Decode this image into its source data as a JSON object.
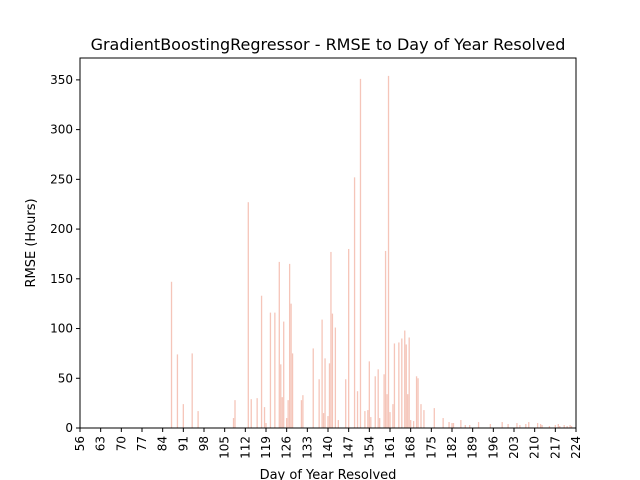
{
  "chart_data": {
    "type": "bar",
    "title": "GradientBoostingRegressor - RMSE to Day of Year Resolved",
    "xlabel": "Day of Year Resolved",
    "ylabel": "RMSE (Hours)",
    "xlim": [
      56,
      224
    ],
    "ylim": [
      0,
      372
    ],
    "x_ticks": [
      56,
      63,
      70,
      77,
      84,
      91,
      98,
      105,
      112,
      119,
      126,
      133,
      140,
      147,
      154,
      161,
      168,
      175,
      182,
      189,
      196,
      203,
      210,
      217,
      224
    ],
    "y_ticks": [
      0,
      50,
      100,
      150,
      200,
      250,
      300,
      350
    ],
    "bar_color": "#f2b6a8",
    "x": [
      87.0,
      89.0,
      91.0,
      94.0,
      96.0,
      108.0,
      108.5,
      113.0,
      114.0,
      116.0,
      117.5,
      118.5,
      119.0,
      120.5,
      122.0,
      123.5,
      124.0,
      124.5,
      125.0,
      126.0,
      126.5,
      127.0,
      127.5,
      128.0,
      131.0,
      131.5,
      135.0,
      137.0,
      138.0,
      138.5,
      139.0,
      140.0,
      140.5,
      141.0,
      141.5,
      142.5,
      143.5,
      146.0,
      147.0,
      149.0,
      150.0,
      151.0,
      152.5,
      153.5,
      154.0,
      154.5,
      156.0,
      157.0,
      157.5,
      159.0,
      159.5,
      160.0,
      160.5,
      161.0,
      162.0,
      162.5,
      164.0,
      165.0,
      166.0,
      166.5,
      167.0,
      167.5,
      168.0,
      169.0,
      170.0,
      170.5,
      171.5,
      172.5,
      176.0,
      179.0,
      181.0,
      182.0,
      182.5,
      185.0,
      186.5,
      188.0,
      191.0,
      195.0,
      199.0,
      201.0,
      204.0,
      205.0,
      207.0,
      208.0,
      211.0,
      212.0,
      212.5,
      215.0,
      217.0,
      218.0,
      218.5,
      220.0,
      221.0,
      222.0,
      222.5
    ],
    "values": [
      147,
      74,
      24,
      75,
      17,
      10,
      28,
      227,
      29,
      30,
      133,
      21,
      5,
      116,
      116,
      167,
      64,
      31,
      107,
      10,
      28,
      165,
      125,
      75,
      28,
      33,
      80,
      49,
      109,
      15,
      70,
      12,
      65,
      177,
      115,
      101,
      8,
      49,
      180,
      252,
      37,
      351,
      17,
      18,
      67,
      11,
      52,
      59,
      10,
      54,
      178,
      34,
      354,
      16,
      24,
      85,
      86,
      90,
      98,
      84,
      34,
      91,
      8,
      7,
      52,
      50,
      24,
      18,
      20,
      10,
      6,
      5,
      5,
      8,
      3,
      3,
      6,
      4,
      6,
      4,
      5,
      3,
      4,
      6,
      5,
      4,
      3,
      2,
      3,
      4,
      2,
      3,
      2,
      3,
      2
    ]
  }
}
